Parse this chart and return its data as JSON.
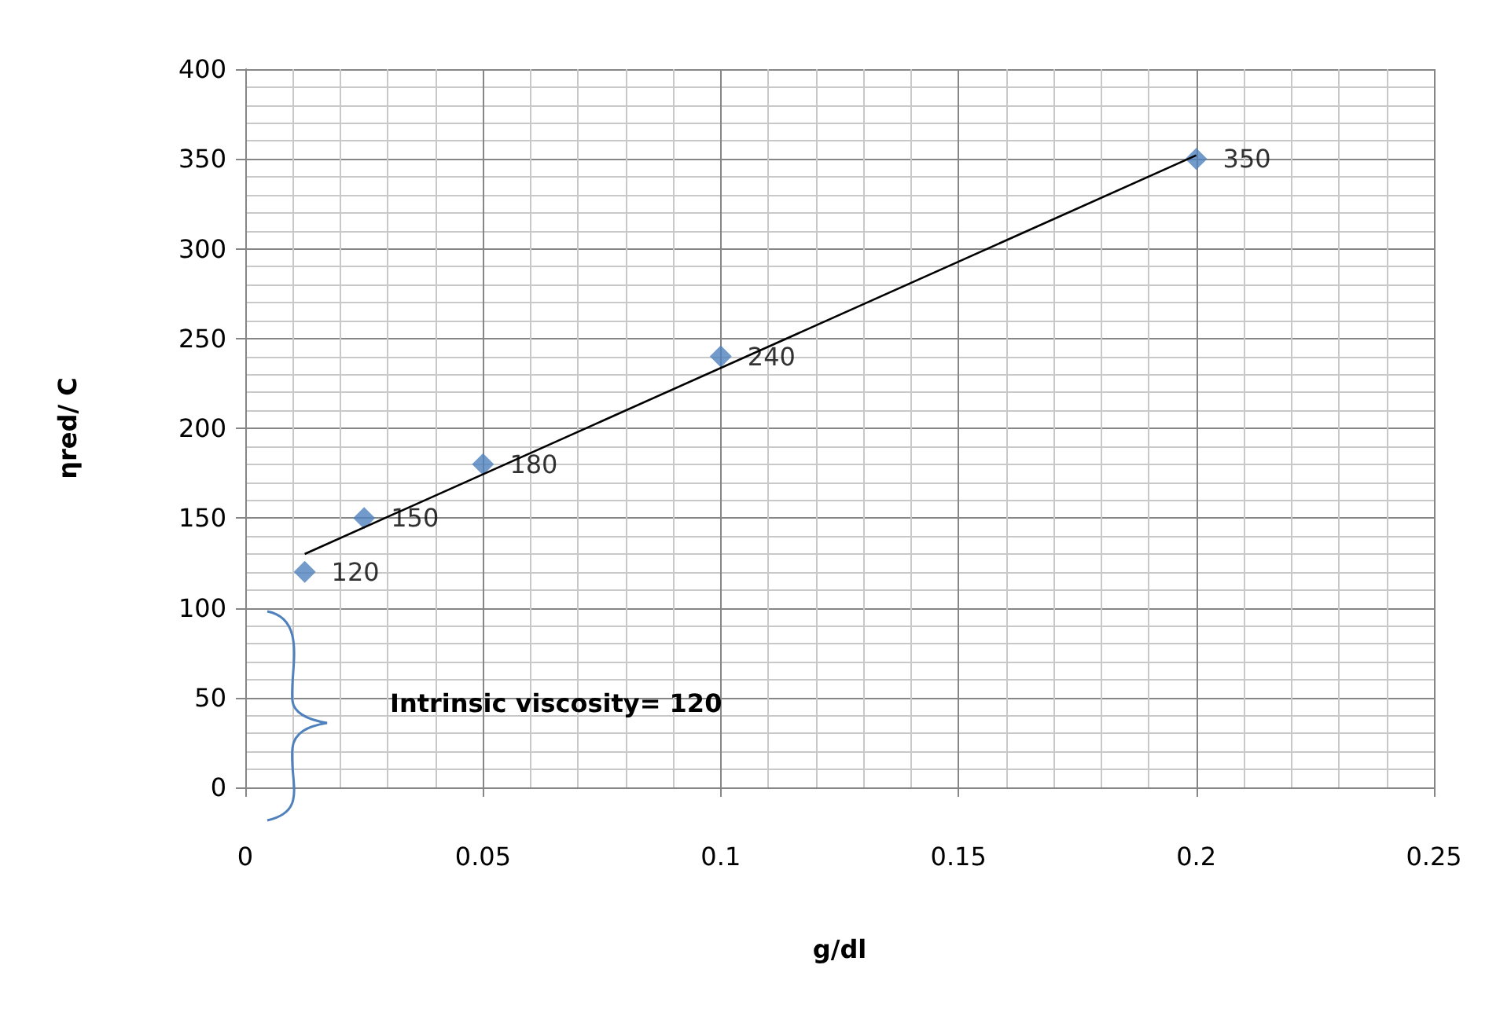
{
  "chart_data": {
    "type": "scatter",
    "xlabel": "g/dl",
    "ylabel": "ηred/ C",
    "annotations": [
      "Intrinsic viscosity= 120"
    ],
    "x": [
      0.0125,
      0.025,
      0.05,
      0.1,
      0.2
    ],
    "series": [
      {
        "color": "#4f81bd",
        "values": [
          120,
          150,
          180,
          240,
          350
        ],
        "value_labels": [
          "120",
          "150",
          "180",
          "240",
          "350"
        ]
      },
      {
        "type": "line",
        "color": "#000000",
        "x": [
          0.0125,
          0.2
        ],
        "values": [
          130,
          352
        ],
        "marker": "none"
      }
    ],
    "marker": "diamond",
    "grid": true,
    "xlim": [
      0,
      0.25
    ],
    "xticks": [
      0,
      0.05,
      0.1,
      0.15,
      0.2,
      0.25
    ],
    "ylim": [
      0,
      400
    ],
    "yticks": [
      0,
      50,
      100,
      150,
      200,
      250,
      300,
      350,
      400
    ]
  }
}
